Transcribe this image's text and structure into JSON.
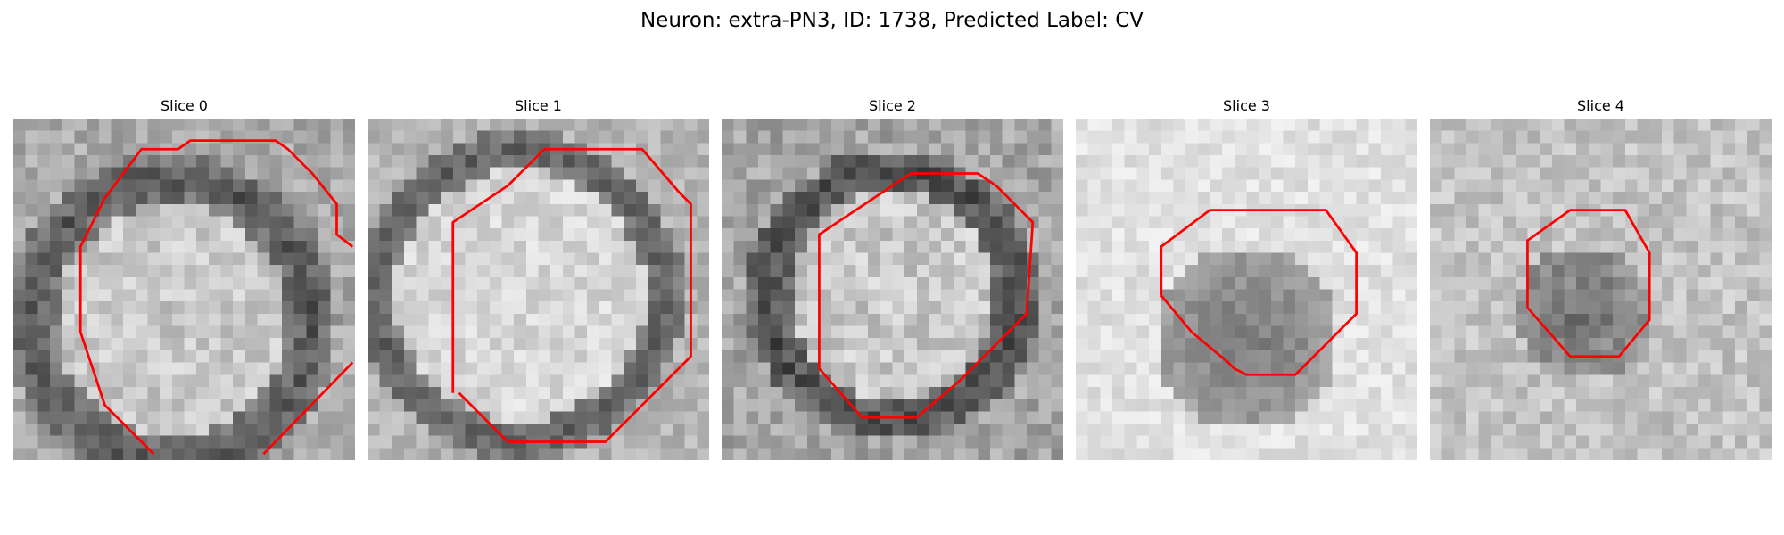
{
  "figure": {
    "title": "Neuron: extra-PN3, ID: 1738, Predicted Label: CV",
    "contour_color": "#ff0000",
    "panels": [
      {
        "title": "Slice 0",
        "image": "grayscale-em-patch-slice-0",
        "seed": 11,
        "pattern": "ring-large-offset"
      },
      {
        "title": "Slice 1",
        "image": "grayscale-em-patch-slice-1",
        "seed": 23,
        "pattern": "ring-large"
      },
      {
        "title": "Slice 2",
        "image": "grayscale-em-patch-slice-2",
        "seed": 37,
        "pattern": "ring-medium"
      },
      {
        "title": "Slice 3",
        "image": "grayscale-em-patch-slice-3",
        "seed": 41,
        "pattern": "blob-light-background"
      },
      {
        "title": "Slice 4",
        "image": "grayscale-em-patch-slice-4",
        "seed": 53,
        "pattern": "blob-small"
      }
    ]
  }
}
